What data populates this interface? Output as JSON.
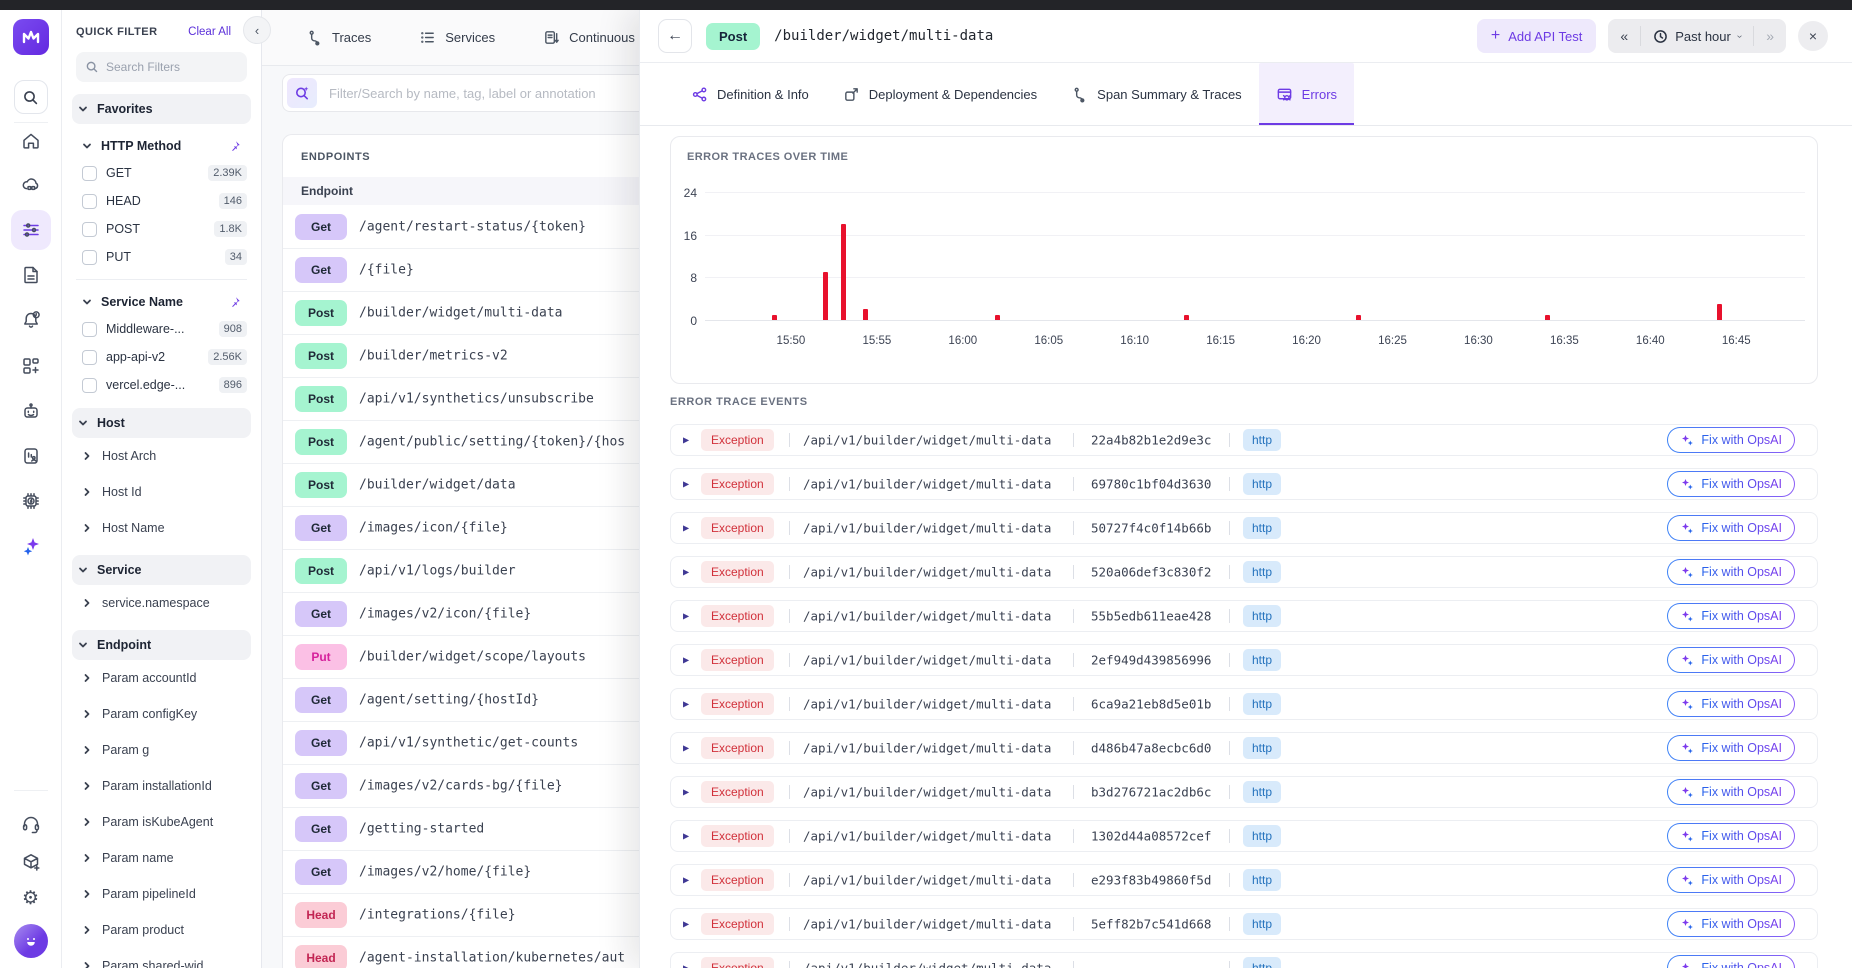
{
  "colors": {
    "accent": "#6d3be4",
    "bar_red": "#e8112d",
    "get_badge": "#d6c7f9",
    "post_badge": "#a5f4d0",
    "put_badge": "#fbc0e5",
    "head_badge": "#fbccd6",
    "exception_badge": "#fbe9e9",
    "http_badge": "#d8eafb"
  },
  "filters": {
    "title": "QUICK FILTER",
    "clear_all": "Clear All",
    "search_placeholder": "Search Filters",
    "sections": [
      {
        "type": "none",
        "label": "Favorites",
        "bg": true,
        "pinned": false
      },
      {
        "type": "checkbox",
        "label": "HTTP Method",
        "bg": false,
        "pinned": true,
        "divider": true,
        "items": [
          {
            "label": "GET",
            "count": "2.39K"
          },
          {
            "label": "HEAD",
            "count": "146"
          },
          {
            "label": "POST",
            "count": "1.8K"
          },
          {
            "label": "PUT",
            "count": "34"
          }
        ]
      },
      {
        "type": "checkbox",
        "label": "Service Name",
        "bg": false,
        "pinned": true,
        "divider": false,
        "items": [
          {
            "label": "Middleware-...",
            "count": "908"
          },
          {
            "label": "app-api-v2",
            "count": "2.56K"
          },
          {
            "label": "vercel.edge-...",
            "count": "896"
          }
        ]
      },
      {
        "type": "tree",
        "label": "Host",
        "bg": true,
        "pinned": false,
        "items": [
          "Host Arch",
          "Host Id",
          "Host Name"
        ]
      },
      {
        "type": "tree",
        "label": "Service",
        "bg": true,
        "pinned": false,
        "items": [
          "service.namespace"
        ]
      },
      {
        "type": "tree",
        "label": "Endpoint",
        "bg": true,
        "pinned": false,
        "items": [
          "Param accountId",
          "Param configKey",
          "Param g",
          "Param installationId",
          "Param isKubeAgent",
          "Param name",
          "Param pipelineId",
          "Param product",
          "Param shared-wid..."
        ]
      }
    ]
  },
  "list_panel": {
    "tabs": [
      {
        "label": "Traces"
      },
      {
        "label": "Services"
      },
      {
        "label": "Continuous Profi"
      }
    ],
    "search_placeholder": "Filter/Search by name, tag, label or annotation",
    "card_title": "ENDPOINTS",
    "column_header": "Endpoint",
    "rows": [
      {
        "method": "Get",
        "path": "/agent/restart-status/{token}"
      },
      {
        "method": "Get",
        "path": "/{file}"
      },
      {
        "method": "Post",
        "path": "/builder/widget/multi-data"
      },
      {
        "method": "Post",
        "path": "/builder/metrics-v2"
      },
      {
        "method": "Post",
        "path": "/api/v1/synthetics/unsubscribe"
      },
      {
        "method": "Post",
        "path": "/agent/public/setting/{token}/{hos"
      },
      {
        "method": "Post",
        "path": "/builder/widget/data"
      },
      {
        "method": "Get",
        "path": "/images/icon/{file}"
      },
      {
        "method": "Post",
        "path": "/api/v1/logs/builder"
      },
      {
        "method": "Get",
        "path": "/images/v2/icon/{file}"
      },
      {
        "method": "Put",
        "path": "/builder/widget/scope/layouts"
      },
      {
        "method": "Get",
        "path": "/agent/setting/{hostId}"
      },
      {
        "method": "Get",
        "path": "/api/v1/synthetic/get-counts"
      },
      {
        "method": "Get",
        "path": "/images/v2/cards-bg/{file}"
      },
      {
        "method": "Get",
        "path": "/getting-started"
      },
      {
        "method": "Get",
        "path": "/images/v2/home/{file}"
      },
      {
        "method": "Head",
        "path": "/integrations/{file}"
      },
      {
        "method": "Head",
        "path": "/agent-installation/kubernetes/aut"
      }
    ]
  },
  "detail": {
    "method": "Post",
    "path": "/builder/widget/multi-data",
    "add_api_test": "Add API Test",
    "prev_arrow": "«",
    "next_arrow": "»",
    "time_range": "Past hour",
    "close": "×",
    "back": "←",
    "tabs": [
      {
        "label": "Definition & Info"
      },
      {
        "label": "Deployment & Dependencies"
      },
      {
        "label": "Span Summary & Traces"
      },
      {
        "label": "Errors",
        "active": true
      }
    ],
    "events": {
      "title": "ERROR TRACE EVENTS",
      "rows": [
        {
          "severity": "Exception",
          "path": "/api/v1/builder/widget/multi-data",
          "trace_id": "22a4b82b1e2d9e3c",
          "protocol": "http",
          "action": "Fix with OpsAI"
        },
        {
          "severity": "Exception",
          "path": "/api/v1/builder/widget/multi-data",
          "trace_id": "69780c1bf04d3630",
          "protocol": "http",
          "action": "Fix with OpsAI"
        },
        {
          "severity": "Exception",
          "path": "/api/v1/builder/widget/multi-data",
          "trace_id": "50727f4c0f14b66b",
          "protocol": "http",
          "action": "Fix with OpsAI"
        },
        {
          "severity": "Exception",
          "path": "/api/v1/builder/widget/multi-data",
          "trace_id": "520a06def3c830f2",
          "protocol": "http",
          "action": "Fix with OpsAI"
        },
        {
          "severity": "Exception",
          "path": "/api/v1/builder/widget/multi-data",
          "trace_id": "55b5edb611eae428",
          "protocol": "http",
          "action": "Fix with OpsAI"
        },
        {
          "severity": "Exception",
          "path": "/api/v1/builder/widget/multi-data",
          "trace_id": "2ef949d439856996",
          "protocol": "http",
          "action": "Fix with OpsAI"
        },
        {
          "severity": "Exception",
          "path": "/api/v1/builder/widget/multi-data",
          "trace_id": "6ca9a21eb8d5e01b",
          "protocol": "http",
          "action": "Fix with OpsAI"
        },
        {
          "severity": "Exception",
          "path": "/api/v1/builder/widget/multi-data",
          "trace_id": "d486b47a8ecbc6d0",
          "protocol": "http",
          "action": "Fix with OpsAI"
        },
        {
          "severity": "Exception",
          "path": "/api/v1/builder/widget/multi-data",
          "trace_id": "b3d276721ac2db6c",
          "protocol": "http",
          "action": "Fix with OpsAI"
        },
        {
          "severity": "Exception",
          "path": "/api/v1/builder/widget/multi-data",
          "trace_id": "1302d44a08572cef",
          "protocol": "http",
          "action": "Fix with OpsAI"
        },
        {
          "severity": "Exception",
          "path": "/api/v1/builder/widget/multi-data",
          "trace_id": "e293f83b49860f5d",
          "protocol": "http",
          "action": "Fix with OpsAI"
        },
        {
          "severity": "Exception",
          "path": "/api/v1/builder/widget/multi-data",
          "trace_id": "5eff82b7c541d668",
          "protocol": "http",
          "action": "Fix with OpsAI"
        },
        {
          "severity": "Exception",
          "path": "/api/v1/builder/widget/multi-data",
          "trace_id": "",
          "protocol": "http",
          "action": "Fix with OpsAI"
        }
      ]
    }
  },
  "chart_data": {
    "type": "bar",
    "title": "ERROR TRACES OVER TIME",
    "x_start": "15:45",
    "span_min": 64,
    "ylim": [
      0,
      24
    ],
    "yticks": [
      0,
      8,
      16,
      24
    ],
    "bar_color": "#e8112d",
    "x_ticks": [
      {
        "label": "15:50",
        "min_offset": 5
      },
      {
        "label": "15:55",
        "min_offset": 10
      },
      {
        "label": "16:00",
        "min_offset": 15
      },
      {
        "label": "16:05",
        "min_offset": 20
      },
      {
        "label": "16:10",
        "min_offset": 25
      },
      {
        "label": "16:15",
        "min_offset": 30
      },
      {
        "label": "16:20",
        "min_offset": 35
      },
      {
        "label": "16:25",
        "min_offset": 40
      },
      {
        "label": "16:30",
        "min_offset": 45
      },
      {
        "label": "16:35",
        "min_offset": 50
      },
      {
        "label": "16:40",
        "min_offset": 55
      },
      {
        "label": "16:45",
        "min_offset": 60
      }
    ],
    "points": [
      {
        "time": "15:49",
        "min_offset": 4,
        "value": 1
      },
      {
        "time": "15:52",
        "min_offset": 7,
        "value": 9
      },
      {
        "time": "15:53",
        "min_offset": 8,
        "value": 18
      },
      {
        "time": "15:54",
        "min_offset": 9.3,
        "value": 2
      },
      {
        "time": "16:02",
        "min_offset": 17,
        "value": 1
      },
      {
        "time": "16:13",
        "min_offset": 28,
        "value": 1
      },
      {
        "time": "16:23",
        "min_offset": 38,
        "value": 1
      },
      {
        "time": "16:34",
        "min_offset": 49,
        "value": 1
      },
      {
        "time": "16:44",
        "min_offset": 59,
        "value": 3
      }
    ]
  }
}
